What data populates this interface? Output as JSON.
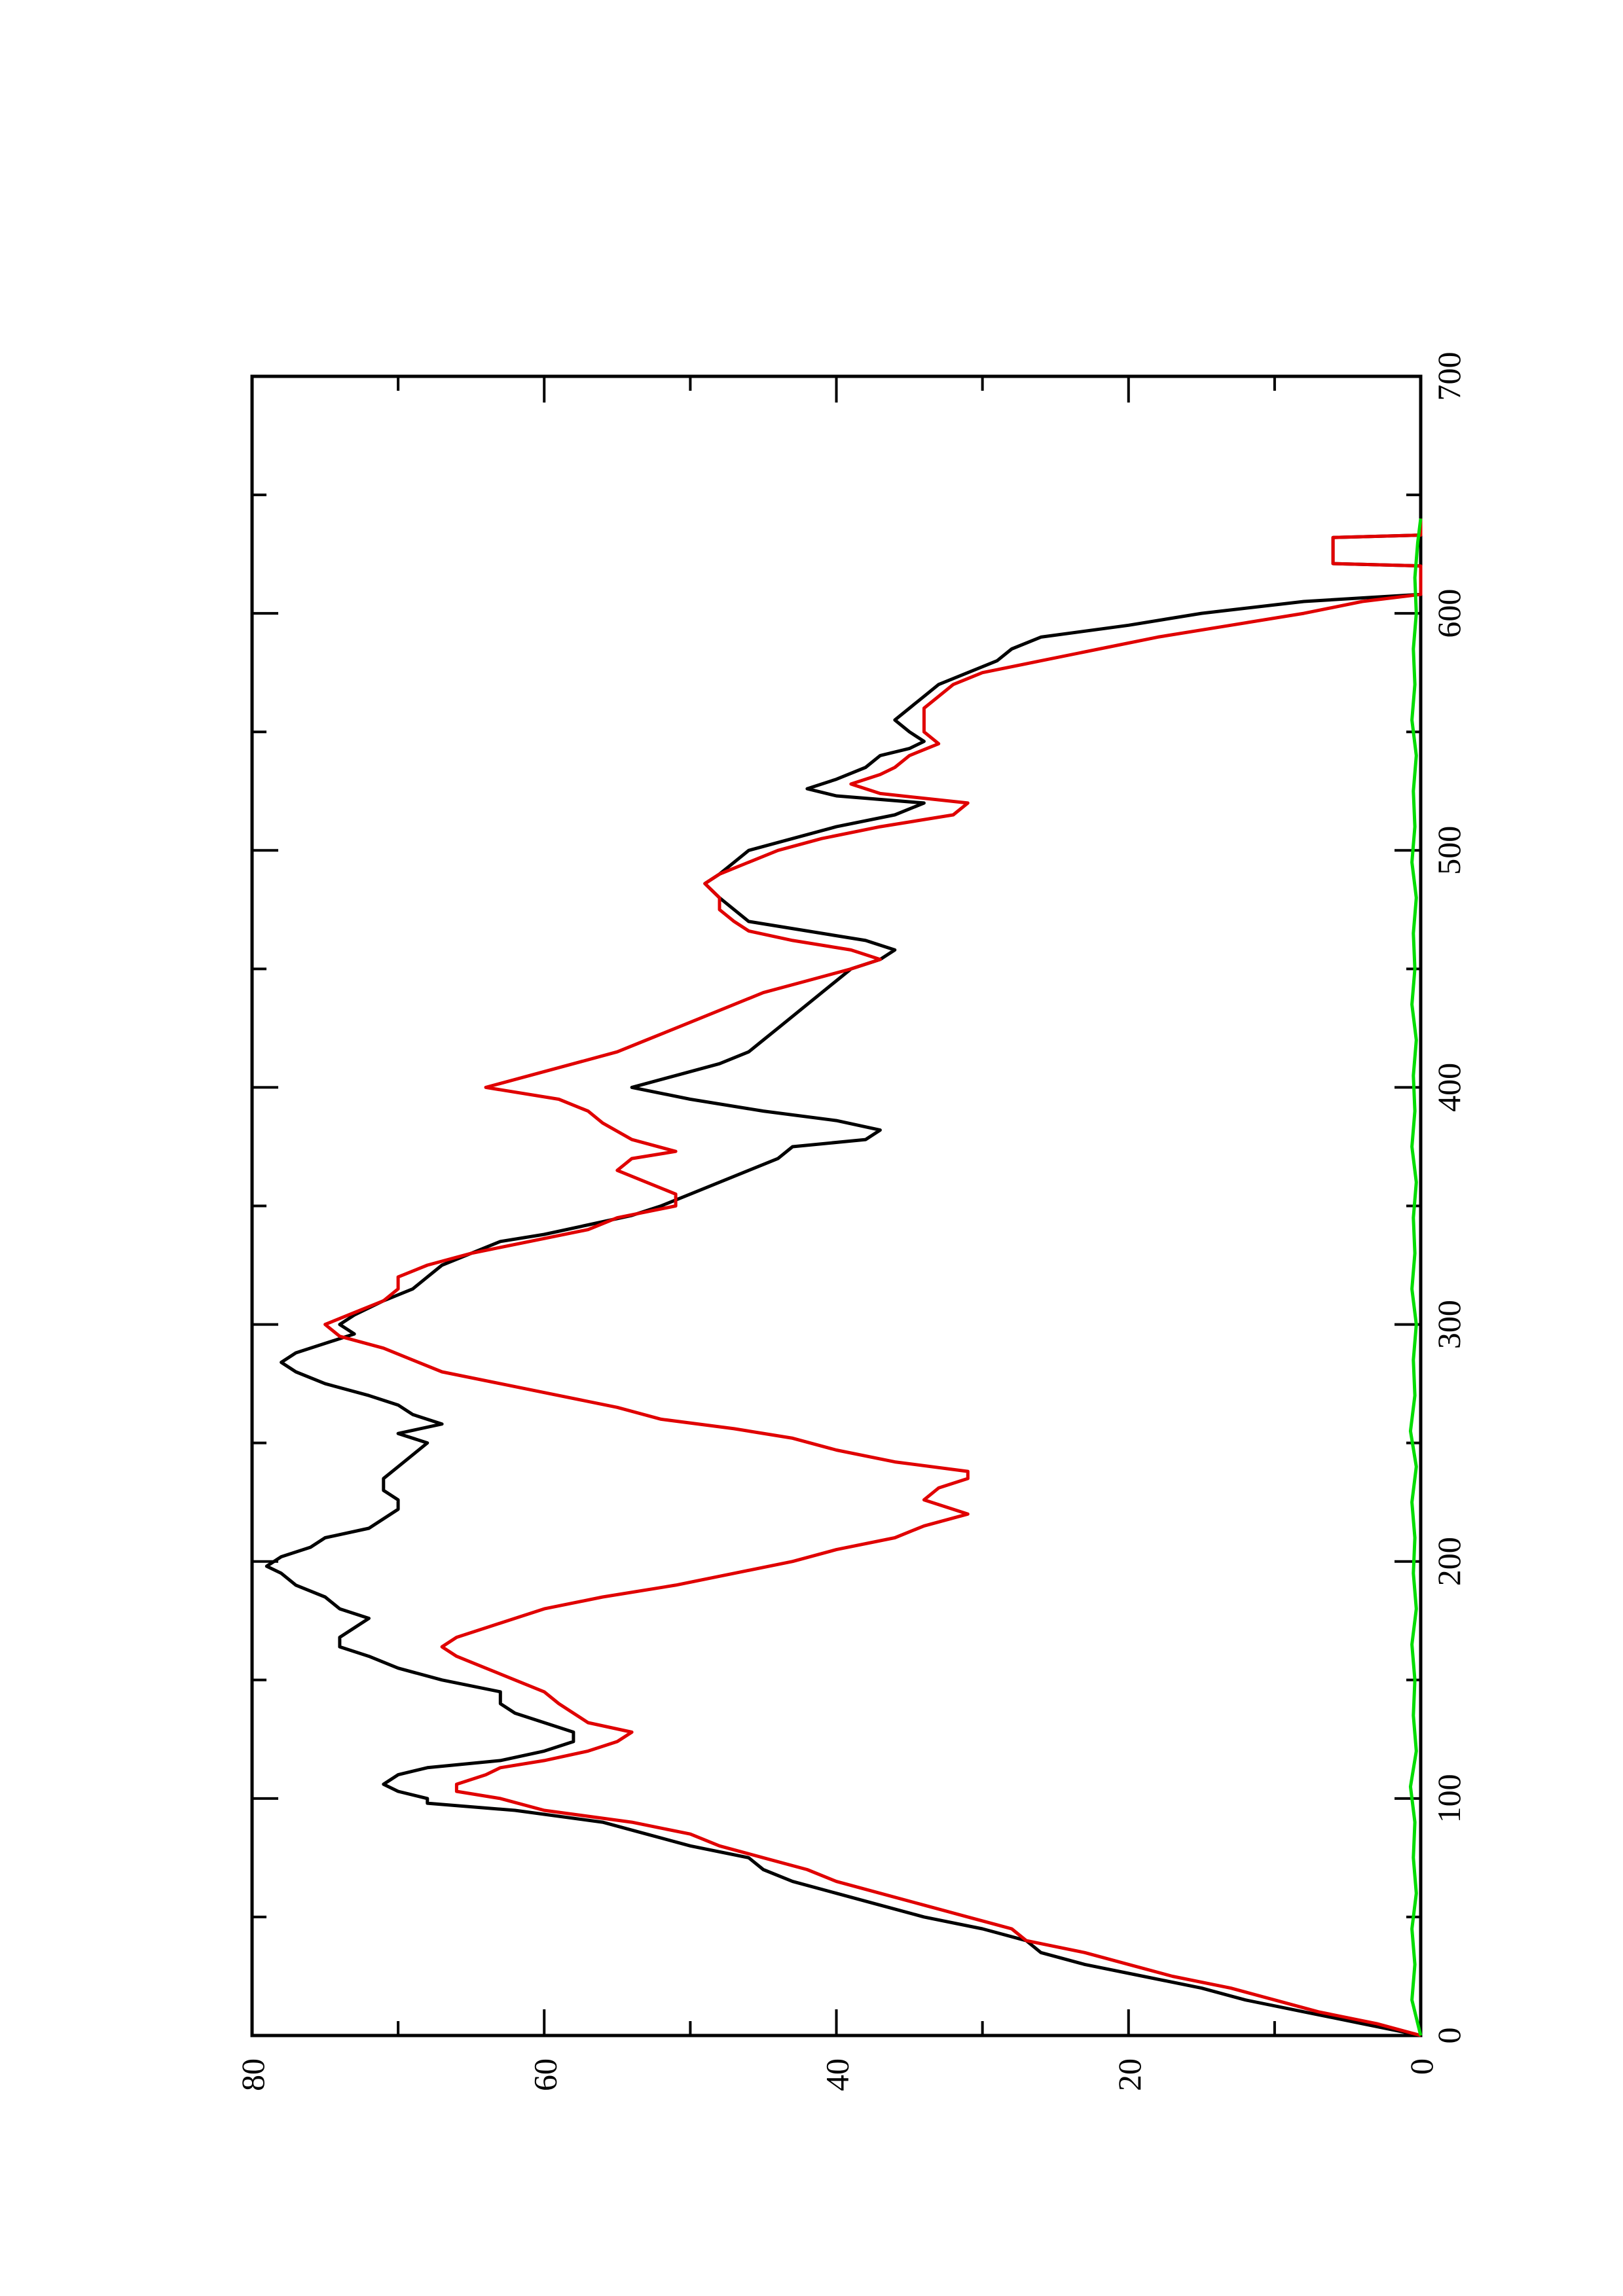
{
  "chart_data": {
    "type": "line",
    "orientation": "rotated-90-clockwise",
    "title": "",
    "xlabel": "",
    "ylabel": "",
    "xlim": [
      0,
      700
    ],
    "ylim": [
      0,
      80
    ],
    "x_ticks": [
      0,
      100,
      200,
      300,
      400,
      500,
      600,
      700
    ],
    "y_ticks": [
      0,
      20,
      40,
      60,
      80
    ],
    "x_tick_labels": [
      "0",
      "100",
      "200",
      "300",
      "400",
      "500",
      "600",
      "700"
    ],
    "y_tick_labels": [
      "0",
      "20",
      "40",
      "60",
      "80"
    ],
    "grid": false,
    "legend": "none",
    "series": [
      {
        "color": "#000000",
        "points": [
          [
            0,
            0
          ],
          [
            5,
            4
          ],
          [
            10,
            8
          ],
          [
            15,
            12
          ],
          [
            20,
            15
          ],
          [
            25,
            19
          ],
          [
            30,
            23
          ],
          [
            35,
            26
          ],
          [
            40,
            27
          ],
          [
            45,
            30
          ],
          [
            50,
            34
          ],
          [
            55,
            37
          ],
          [
            60,
            40
          ],
          [
            65,
            43
          ],
          [
            70,
            45
          ],
          [
            75,
            46
          ],
          [
            80,
            50
          ],
          [
            85,
            53
          ],
          [
            90,
            56
          ],
          [
            95,
            62
          ],
          [
            98,
            68
          ],
          [
            100,
            68
          ],
          [
            103,
            70
          ],
          [
            106,
            71
          ],
          [
            110,
            70
          ],
          [
            113,
            68
          ],
          [
            116,
            63
          ],
          [
            120,
            60
          ],
          [
            124,
            58
          ],
          [
            128,
            58
          ],
          [
            132,
            60
          ],
          [
            136,
            62
          ],
          [
            140,
            63
          ],
          [
            145,
            63
          ],
          [
            150,
            67
          ],
          [
            155,
            70
          ],
          [
            160,
            72
          ],
          [
            164,
            74
          ],
          [
            168,
            74
          ],
          [
            172,
            73
          ],
          [
            176,
            72
          ],
          [
            180,
            74
          ],
          [
            185,
            75
          ],
          [
            190,
            77
          ],
          [
            195,
            78
          ],
          [
            198,
            79
          ],
          [
            202,
            78
          ],
          [
            206,
            76
          ],
          [
            210,
            75
          ],
          [
            214,
            72
          ],
          [
            218,
            71
          ],
          [
            222,
            70
          ],
          [
            226,
            70
          ],
          [
            230,
            71
          ],
          [
            235,
            71
          ],
          [
            240,
            70
          ],
          [
            245,
            69
          ],
          [
            250,
            68
          ],
          [
            254,
            70
          ],
          [
            258,
            67
          ],
          [
            262,
            69
          ],
          [
            266,
            70
          ],
          [
            270,
            72
          ],
          [
            275,
            75
          ],
          [
            280,
            77
          ],
          [
            284,
            78
          ],
          [
            288,
            77
          ],
          [
            292,
            75
          ],
          [
            296,
            73
          ],
          [
            300,
            74
          ],
          [
            304,
            73
          ],
          [
            310,
            71
          ],
          [
            315,
            69
          ],
          [
            320,
            68
          ],
          [
            325,
            67
          ],
          [
            330,
            65
          ],
          [
            335,
            63
          ],
          [
            338,
            60
          ],
          [
            342,
            57
          ],
          [
            346,
            54
          ],
          [
            350,
            52
          ],
          [
            355,
            50
          ],
          [
            360,
            48
          ],
          [
            365,
            46
          ],
          [
            370,
            44
          ],
          [
            375,
            43
          ],
          [
            378,
            38
          ],
          [
            382,
            37
          ],
          [
            386,
            40
          ],
          [
            390,
            45
          ],
          [
            395,
            50
          ],
          [
            400,
            54
          ],
          [
            405,
            51
          ],
          [
            410,
            48
          ],
          [
            415,
            46
          ],
          [
            420,
            45
          ],
          [
            425,
            44
          ],
          [
            430,
            43
          ],
          [
            435,
            42
          ],
          [
            440,
            41
          ],
          [
            445,
            40
          ],
          [
            450,
            39
          ],
          [
            454,
            37
          ],
          [
            458,
            36
          ],
          [
            462,
            38
          ],
          [
            466,
            42
          ],
          [
            470,
            46
          ],
          [
            475,
            47
          ],
          [
            480,
            48
          ],
          [
            486,
            49
          ],
          [
            490,
            48
          ],
          [
            495,
            47
          ],
          [
            500,
            46
          ],
          [
            505,
            43
          ],
          [
            510,
            40
          ],
          [
            515,
            36
          ],
          [
            520,
            34
          ],
          [
            523,
            40
          ],
          [
            526,
            42
          ],
          [
            530,
            40
          ],
          [
            535,
            38
          ],
          [
            540,
            37
          ],
          [
            543,
            35
          ],
          [
            546,
            34
          ],
          [
            550,
            35
          ],
          [
            555,
            36
          ],
          [
            560,
            35
          ],
          [
            565,
            34
          ],
          [
            570,
            33
          ],
          [
            575,
            31
          ],
          [
            580,
            29
          ],
          [
            585,
            28
          ],
          [
            590,
            26
          ],
          [
            595,
            20
          ],
          [
            600,
            15
          ],
          [
            605,
            8
          ],
          [
            608,
            0
          ],
          [
            620,
            0
          ],
          [
            621,
            6
          ],
          [
            632,
            6
          ],
          [
            633,
            0
          ],
          [
            640,
            0
          ]
        ]
      },
      {
        "color": "#e00000",
        "points": [
          [
            0,
            0
          ],
          [
            5,
            3
          ],
          [
            10,
            7
          ],
          [
            15,
            10
          ],
          [
            20,
            13
          ],
          [
            25,
            17
          ],
          [
            30,
            20
          ],
          [
            35,
            23
          ],
          [
            40,
            27
          ],
          [
            45,
            28
          ],
          [
            50,
            31
          ],
          [
            55,
            34
          ],
          [
            60,
            37
          ],
          [
            65,
            40
          ],
          [
            70,
            42
          ],
          [
            75,
            45
          ],
          [
            80,
            48
          ],
          [
            85,
            50
          ],
          [
            90,
            54
          ],
          [
            95,
            60
          ],
          [
            100,
            63
          ],
          [
            103,
            66
          ],
          [
            106,
            66
          ],
          [
            110,
            64
          ],
          [
            113,
            63
          ],
          [
            116,
            60
          ],
          [
            120,
            57
          ],
          [
            124,
            55
          ],
          [
            128,
            54
          ],
          [
            132,
            57
          ],
          [
            136,
            58
          ],
          [
            140,
            59
          ],
          [
            145,
            60
          ],
          [
            150,
            62
          ],
          [
            155,
            64
          ],
          [
            160,
            66
          ],
          [
            164,
            67
          ],
          [
            168,
            66
          ],
          [
            172,
            64
          ],
          [
            176,
            62
          ],
          [
            180,
            60
          ],
          [
            185,
            56
          ],
          [
            190,
            51
          ],
          [
            195,
            47
          ],
          [
            200,
            43
          ],
          [
            205,
            40
          ],
          [
            210,
            36
          ],
          [
            215,
            34
          ],
          [
            220,
            31
          ],
          [
            226,
            34
          ],
          [
            231,
            33
          ],
          [
            235,
            31
          ],
          [
            238,
            31
          ],
          [
            242,
            36
          ],
          [
            247,
            40
          ],
          [
            252,
            43
          ],
          [
            256,
            47
          ],
          [
            260,
            52
          ],
          [
            265,
            55
          ],
          [
            270,
            59
          ],
          [
            275,
            63
          ],
          [
            280,
            67
          ],
          [
            285,
            69
          ],
          [
            290,
            71
          ],
          [
            295,
            74
          ],
          [
            300,
            75
          ],
          [
            305,
            73
          ],
          [
            310,
            71
          ],
          [
            315,
            70
          ],
          [
            320,
            70
          ],
          [
            325,
            68
          ],
          [
            330,
            65
          ],
          [
            335,
            61
          ],
          [
            340,
            57
          ],
          [
            345,
            55
          ],
          [
            350,
            51
          ],
          [
            355,
            51
          ],
          [
            360,
            53
          ],
          [
            365,
            55
          ],
          [
            370,
            54
          ],
          [
            373,
            51
          ],
          [
            378,
            54
          ],
          [
            385,
            56
          ],
          [
            390,
            57
          ],
          [
            395,
            59
          ],
          [
            400,
            64
          ],
          [
            405,
            61
          ],
          [
            410,
            58
          ],
          [
            415,
            55
          ],
          [
            420,
            53
          ],
          [
            425,
            51
          ],
          [
            430,
            49
          ],
          [
            435,
            47
          ],
          [
            440,
            45
          ],
          [
            445,
            42
          ],
          [
            450,
            39
          ],
          [
            454,
            37
          ],
          [
            458,
            39
          ],
          [
            462,
            43
          ],
          [
            466,
            46
          ],
          [
            470,
            47
          ],
          [
            475,
            48
          ],
          [
            480,
            48
          ],
          [
            486,
            49
          ],
          [
            490,
            48
          ],
          [
            495,
            46
          ],
          [
            500,
            44
          ],
          [
            505,
            41
          ],
          [
            510,
            37
          ],
          [
            515,
            32
          ],
          [
            520,
            31
          ],
          [
            524,
            37
          ],
          [
            528,
            39
          ],
          [
            532,
            37
          ],
          [
            535,
            36
          ],
          [
            540,
            35
          ],
          [
            545,
            33
          ],
          [
            550,
            34
          ],
          [
            555,
            34
          ],
          [
            560,
            34
          ],
          [
            565,
            33
          ],
          [
            570,
            32
          ],
          [
            575,
            30
          ],
          [
            580,
            26
          ],
          [
            585,
            22
          ],
          [
            590,
            18
          ],
          [
            595,
            13
          ],
          [
            600,
            8
          ],
          [
            605,
            4
          ],
          [
            608,
            0
          ],
          [
            620,
            0
          ],
          [
            621,
            6
          ],
          [
            632,
            6
          ],
          [
            633,
            0
          ],
          [
            640,
            0
          ]
        ]
      },
      {
        "color": "#00dd00",
        "points": [
          [
            0,
            0
          ],
          [
            15,
            0.6
          ],
          [
            30,
            0.4
          ],
          [
            45,
            0.6
          ],
          [
            60,
            0.3
          ],
          [
            75,
            0.5
          ],
          [
            90,
            0.4
          ],
          [
            105,
            0.7
          ],
          [
            120,
            0.3
          ],
          [
            135,
            0.5
          ],
          [
            150,
            0.4
          ],
          [
            165,
            0.6
          ],
          [
            180,
            0.3
          ],
          [
            195,
            0.5
          ],
          [
            210,
            0.4
          ],
          [
            225,
            0.6
          ],
          [
            240,
            0.3
          ],
          [
            255,
            0.7
          ],
          [
            270,
            0.4
          ],
          [
            285,
            0.5
          ],
          [
            300,
            0.3
          ],
          [
            315,
            0.6
          ],
          [
            330,
            0.4
          ],
          [
            345,
            0.5
          ],
          [
            360,
            0.3
          ],
          [
            375,
            0.6
          ],
          [
            390,
            0.4
          ],
          [
            405,
            0.5
          ],
          [
            420,
            0.3
          ],
          [
            435,
            0.6
          ],
          [
            450,
            0.4
          ],
          [
            465,
            0.5
          ],
          [
            480,
            0.3
          ],
          [
            495,
            0.6
          ],
          [
            510,
            0.4
          ],
          [
            525,
            0.5
          ],
          [
            540,
            0.3
          ],
          [
            555,
            0.6
          ],
          [
            570,
            0.4
          ],
          [
            585,
            0.5
          ],
          [
            600,
            0.3
          ],
          [
            615,
            0.4
          ],
          [
            630,
            0.2
          ],
          [
            640,
            0
          ]
        ]
      }
    ]
  }
}
